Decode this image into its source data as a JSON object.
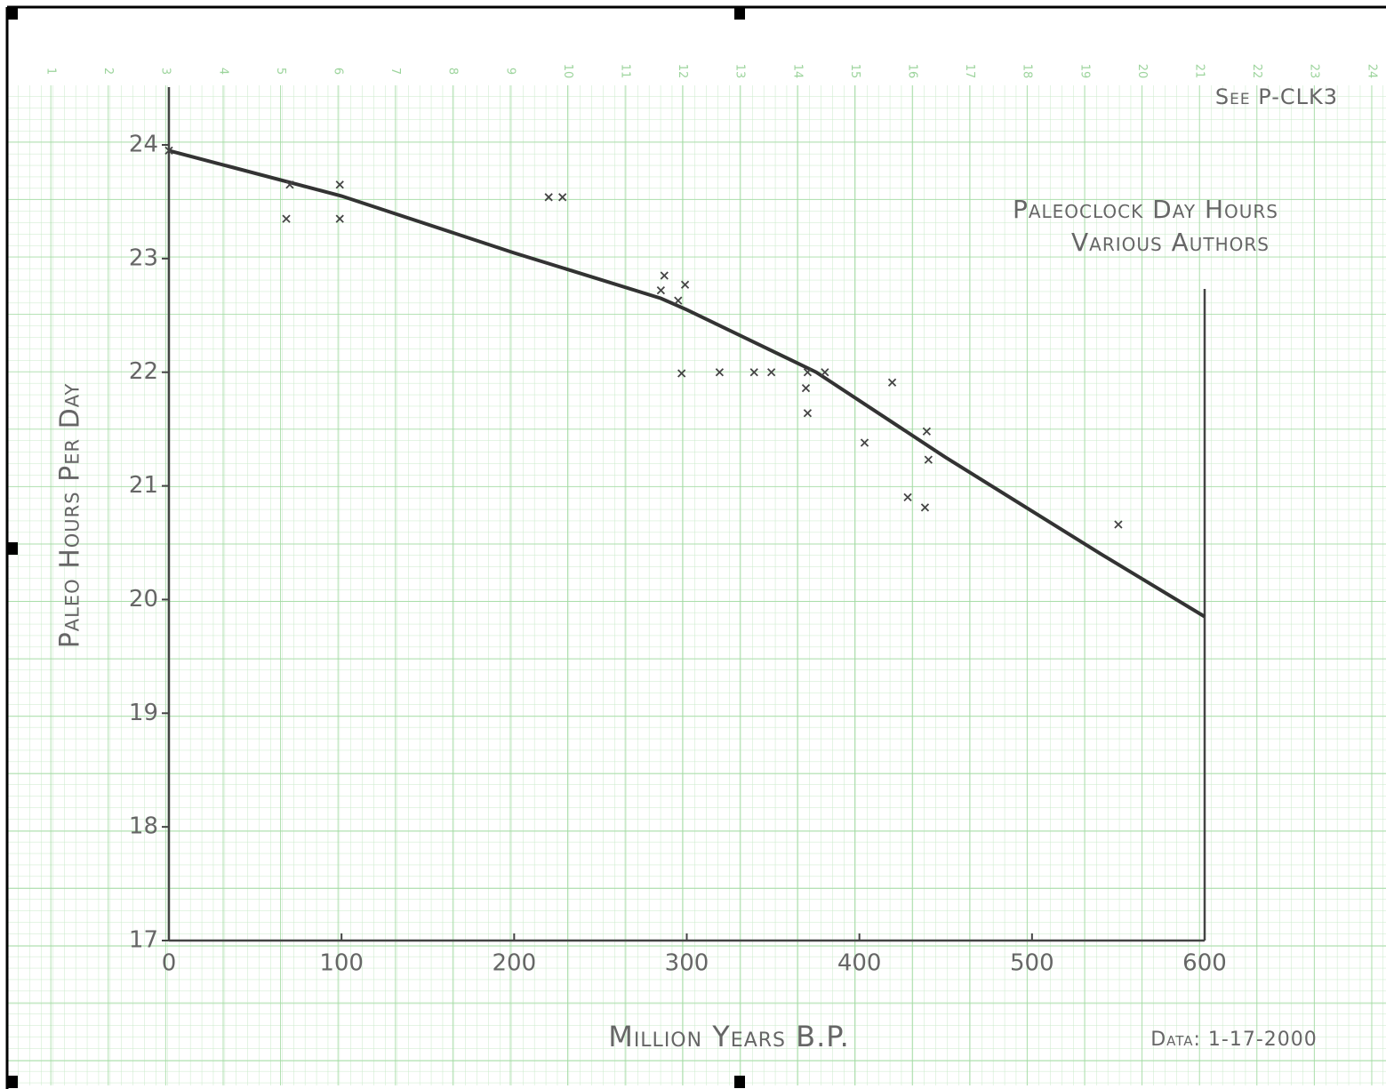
{
  "chart_data": {
    "type": "scatter",
    "title": "Paleoclock Day Hours",
    "subtitle": "Various Authors",
    "note": "See P-CLK3",
    "date_note": "Data: 1-17-2000",
    "x_label": "Million Years B.P.",
    "y_label": "Paleo Hours Per Day",
    "top_scale": [
      1,
      2,
      3,
      4,
      5,
      6,
      7,
      8,
      9,
      10,
      11,
      12,
      13,
      14,
      15,
      16,
      17,
      18,
      19,
      20,
      21,
      22,
      23,
      24
    ],
    "xlim": [
      0,
      600
    ],
    "ylim": [
      17,
      24
    ],
    "xticks": [
      0,
      100,
      200,
      300,
      400,
      500,
      600
    ],
    "yticks": [
      17,
      18,
      19,
      20,
      21,
      22,
      23,
      24
    ],
    "marker_color": "#444444",
    "line_color": "#333333",
    "points": {
      "x": [
        0,
        70,
        68,
        99,
        99,
        220,
        228,
        287,
        285,
        299,
        295,
        297,
        319,
        339,
        349,
        370,
        380,
        369,
        370,
        403,
        419,
        428,
        438,
        439,
        440,
        550
      ],
      "y": [
        23.95,
        23.65,
        23.35,
        23.65,
        23.35,
        23.54,
        23.54,
        22.85,
        22.72,
        22.77,
        22.63,
        21.99,
        22.0,
        22.0,
        22.0,
        22.0,
        22.0,
        21.86,
        21.64,
        21.38,
        21.91,
        20.9,
        20.81,
        21.48,
        21.23,
        20.66
      ]
    },
    "curve": {
      "x": [
        0,
        100,
        200,
        285,
        300,
        375,
        450,
        540,
        600
      ],
      "y": [
        23.95,
        23.55,
        23.05,
        22.65,
        22.55,
        22.0,
        21.25,
        20.4,
        19.85
      ]
    }
  }
}
